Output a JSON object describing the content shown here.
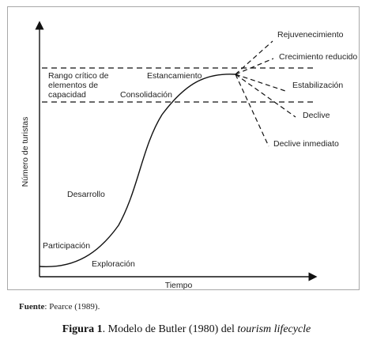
{
  "diagram": {
    "y_axis_label": "Número de turistas",
    "x_axis_label": "Tiempo",
    "capacity_label_lines": [
      "Rango crítico de",
      "elementos de",
      "capacidad"
    ],
    "stages": {
      "exploracion": "Exploración",
      "participacion": "Participación",
      "desarrollo": "Desarrollo",
      "consolidacion": "Consolidación",
      "estancamiento": "Estancamiento"
    },
    "scenarios": {
      "rejuvenecimiento": "Rejuvenecimiento",
      "crecimiento_reducido": "Crecimiento reducido",
      "estabilizacion": "Estabilización",
      "declive": "Declive",
      "declive_inmediato": "Declive inmediato"
    }
  },
  "source": {
    "label": "Fuente",
    "text": ": Pearce (1989)."
  },
  "caption": {
    "figure_label": "Figura 1",
    "text": ". Modelo de Butler (1980) del ",
    "italic": "tourism lifecycle"
  }
}
